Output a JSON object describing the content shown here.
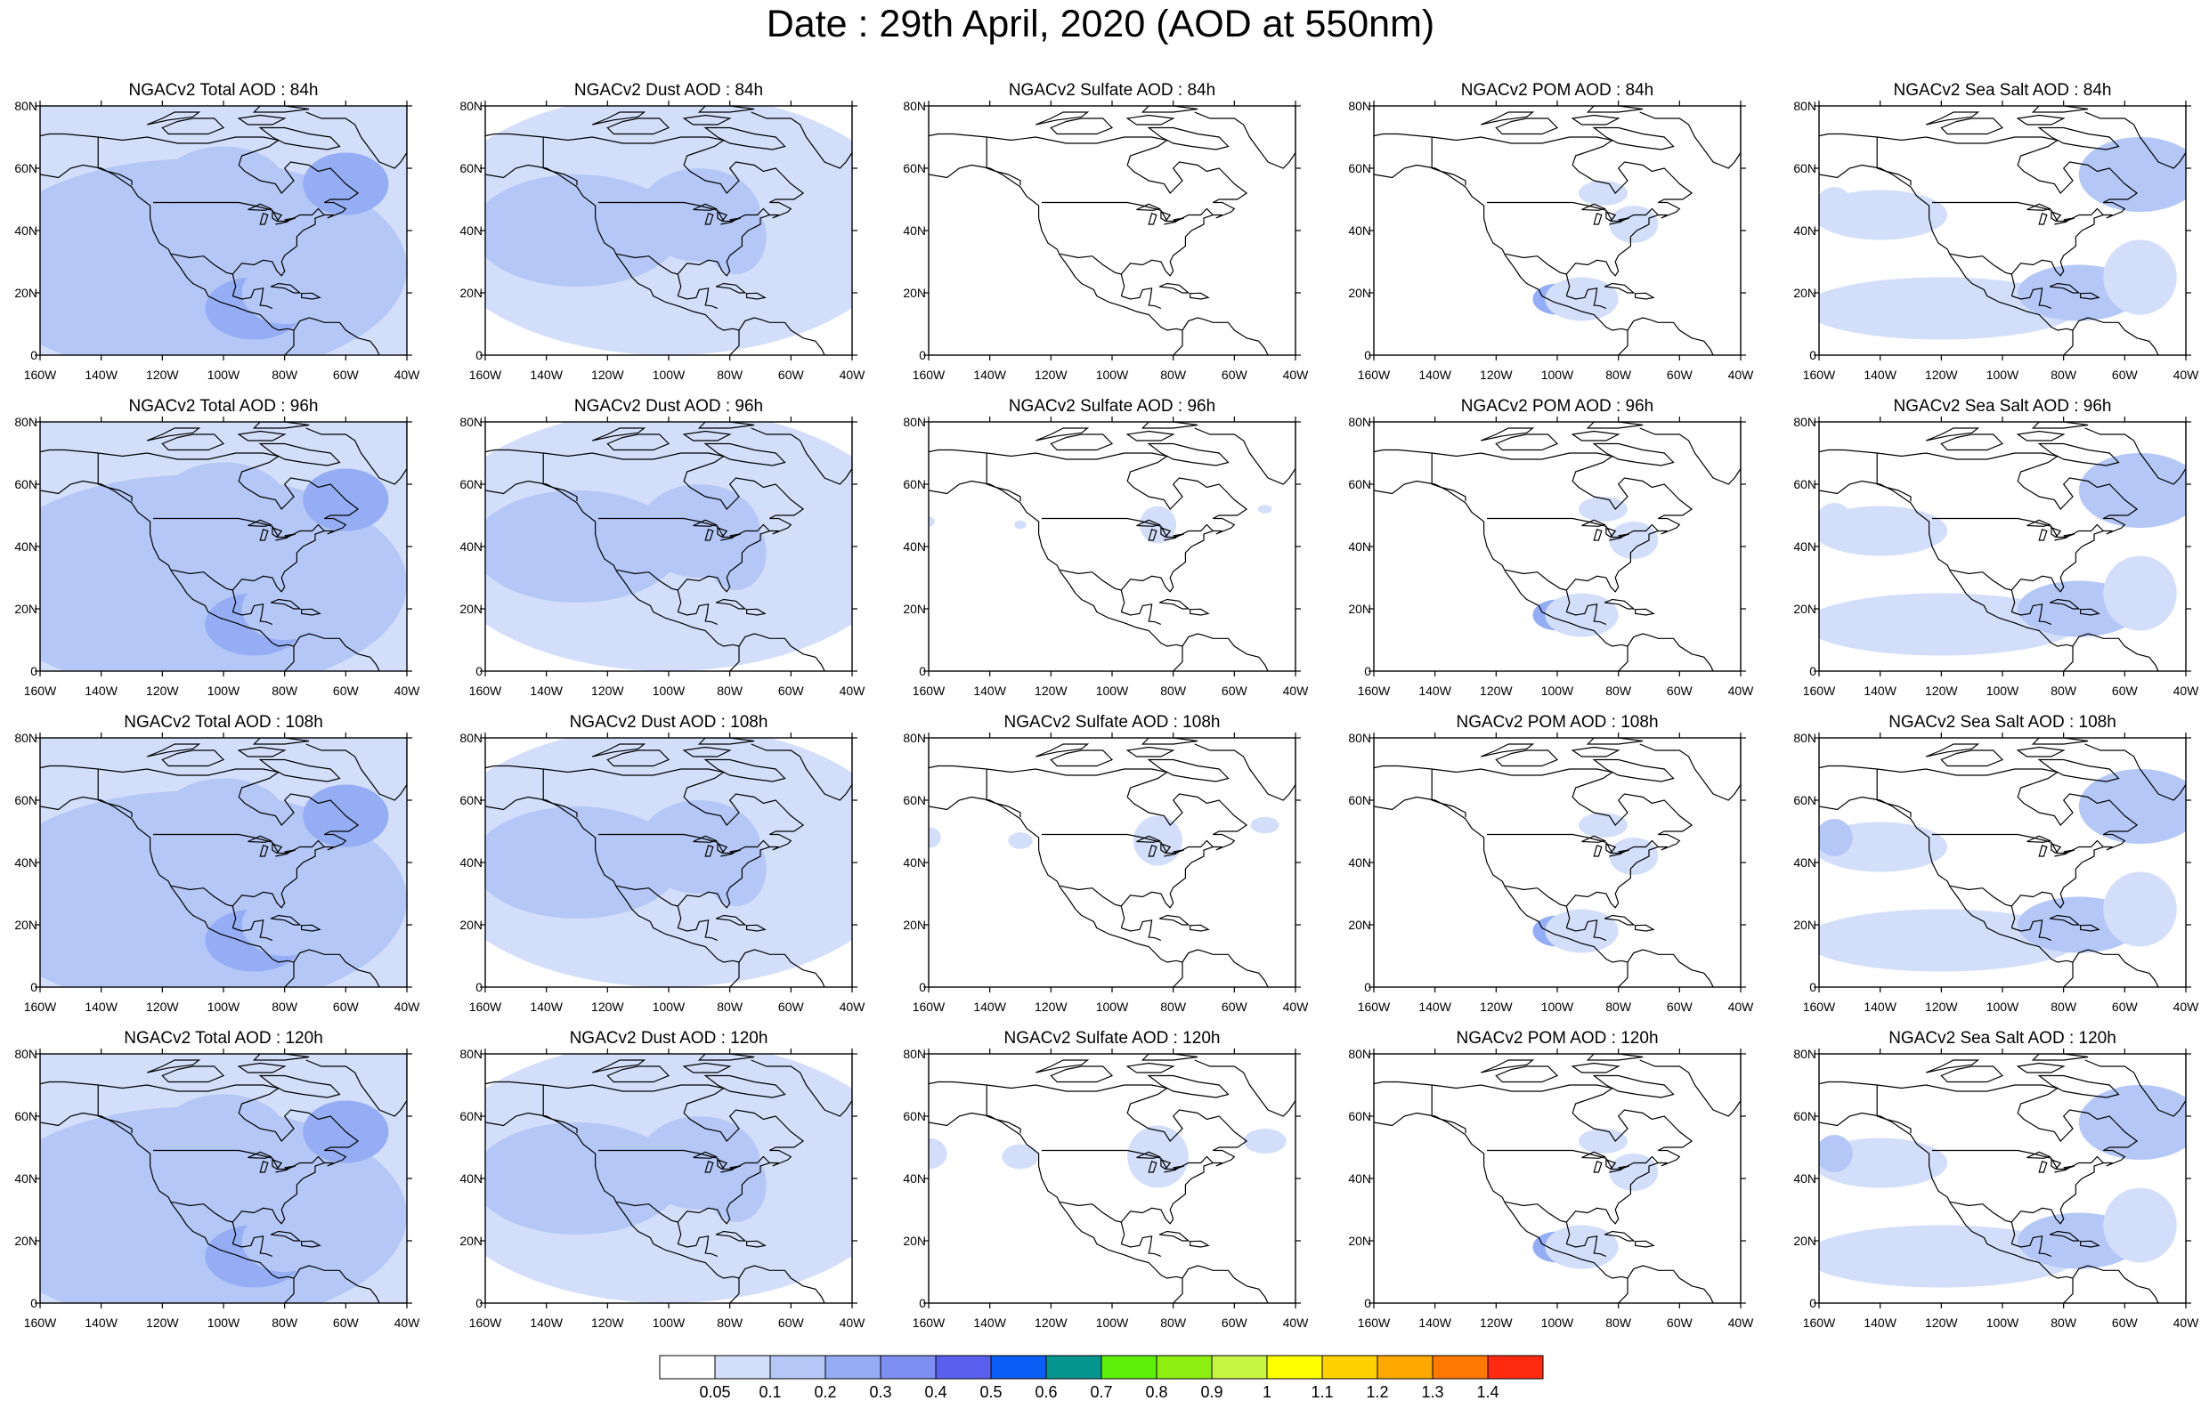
{
  "title": "Date : 29th April, 2020 (AOD at 550nm)",
  "axes": {
    "lat_labels": [
      "80N",
      "60N",
      "40N",
      "20N",
      "0"
    ],
    "lon_labels": [
      "160W",
      "140W",
      "120W",
      "100W",
      "80W",
      "60W",
      "40W"
    ]
  },
  "panels": [
    {
      "title": "NGACv2 Total AOD : 84h",
      "species": "total",
      "hour": 84
    },
    {
      "title": "NGACv2 Dust AOD : 84h",
      "species": "dust",
      "hour": 84
    },
    {
      "title": "NGACv2 Sulfate AOD : 84h",
      "species": "sulfate",
      "hour": 84
    },
    {
      "title": "NGACv2 POM AOD : 84h",
      "species": "pom",
      "hour": 84
    },
    {
      "title": "NGACv2 Sea Salt AOD : 84h",
      "species": "seasalt",
      "hour": 84
    },
    {
      "title": "NGACv2 Total AOD : 96h",
      "species": "total",
      "hour": 96
    },
    {
      "title": "NGACv2 Dust AOD : 96h",
      "species": "dust",
      "hour": 96
    },
    {
      "title": "NGACv2 Sulfate AOD : 96h",
      "species": "sulfate",
      "hour": 96
    },
    {
      "title": "NGACv2 POM AOD : 96h",
      "species": "pom",
      "hour": 96
    },
    {
      "title": "NGACv2 Sea Salt AOD : 96h",
      "species": "seasalt",
      "hour": 96
    },
    {
      "title": "NGACv2 Total AOD : 108h",
      "species": "total",
      "hour": 108
    },
    {
      "title": "NGACv2 Dust AOD : 108h",
      "species": "dust",
      "hour": 108
    },
    {
      "title": "NGACv2 Sulfate AOD : 108h",
      "species": "sulfate",
      "hour": 108
    },
    {
      "title": "NGACv2 POM AOD : 108h",
      "species": "pom",
      "hour": 108
    },
    {
      "title": "NGACv2 Sea Salt AOD : 108h",
      "species": "seasalt",
      "hour": 108
    },
    {
      "title": "NGACv2 Total AOD : 120h",
      "species": "total",
      "hour": 120
    },
    {
      "title": "NGACv2 Dust AOD : 120h",
      "species": "dust",
      "hour": 120
    },
    {
      "title": "NGACv2 Sulfate AOD : 120h",
      "species": "sulfate",
      "hour": 120
    },
    {
      "title": "NGACv2 POM AOD : 120h",
      "species": "pom",
      "hour": 120
    },
    {
      "title": "NGACv2 Sea Salt  AOD : 120h",
      "species": "seasalt",
      "hour": 120
    }
  ],
  "colorbar": {
    "labels": [
      "0.05",
      "0.1",
      "0.2",
      "0.3",
      "0.4",
      "0.5",
      "0.6",
      "0.7",
      "0.8",
      "0.9",
      "1",
      "1.1",
      "1.2",
      "1.3",
      "1.4"
    ],
    "colors": [
      "#ffffff",
      "#d3defa",
      "#b4c7f6",
      "#94adf4",
      "#7e8ff2",
      "#5a5fee",
      "#0a5ef6",
      "#05958f",
      "#5ef00a",
      "#8ef010",
      "#c8f442",
      "#ffff00",
      "#ffd000",
      "#ffa800",
      "#ff7800",
      "#ff2a10"
    ]
  }
}
